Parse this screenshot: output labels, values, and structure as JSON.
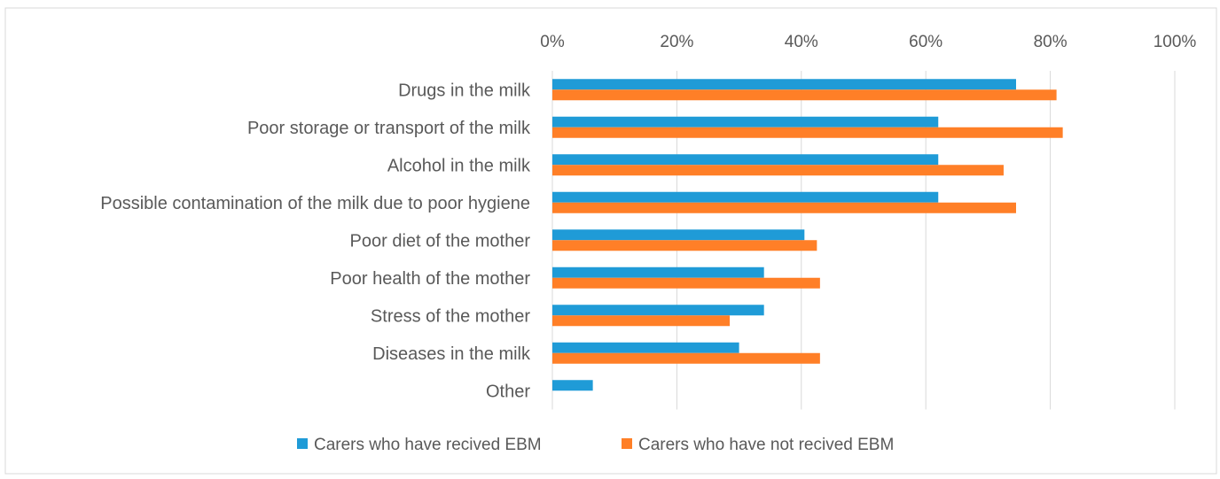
{
  "chart_data": {
    "type": "bar",
    "orientation": "horizontal",
    "title": "",
    "xlabel": "",
    "ylabel": "",
    "xlim": [
      0,
      100
    ],
    "x_ticks": [
      "0%",
      "20%",
      "40%",
      "60%",
      "80%",
      "100%"
    ],
    "x_axis_position": "top",
    "grid": true,
    "legend_position": "bottom",
    "categories": [
      "Drugs in the milk",
      "Poor storage or transport of the milk",
      "Alcohol in the milk",
      "Possible contamination of the milk due to poor hygiene",
      "Poor diet of the mother",
      "Poor health of the mother",
      "Stress of the mother",
      "Diseases in the milk",
      "Other"
    ],
    "series": [
      {
        "name": "Carers who have recived EBM",
        "color": "#1f9bd7",
        "values": [
          74.5,
          62,
          62,
          62,
          40.5,
          34,
          34,
          30,
          6.5
        ]
      },
      {
        "name": "Carers who have not recived EBM",
        "color": "#ff7f27",
        "values": [
          81,
          82,
          72.5,
          74.5,
          42.5,
          43,
          28.5,
          43,
          0
        ]
      }
    ]
  }
}
